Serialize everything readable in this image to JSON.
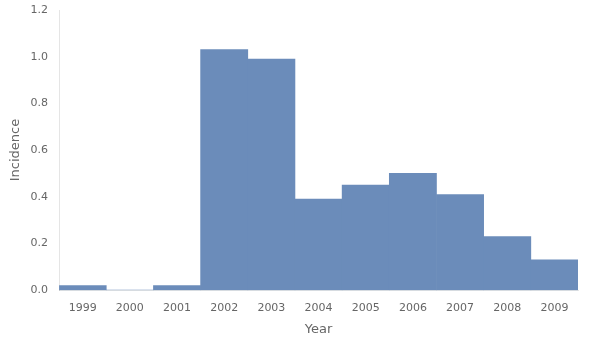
{
  "chart_data": {
    "type": "bar",
    "categories": [
      "1999",
      "2000",
      "2001",
      "2002",
      "2003",
      "2004",
      "2005",
      "2006",
      "2007",
      "2008",
      "2009"
    ],
    "values": [
      0.02,
      0.0,
      0.02,
      1.03,
      0.99,
      0.39,
      0.45,
      0.5,
      0.41,
      0.23,
      0.13
    ],
    "color": "#6b8cba",
    "xlabel": "Year",
    "ylabel": "Incidence",
    "ylim": [
      0,
      1.2
    ],
    "yticks": [
      {
        "value": 0.0,
        "label": "0.0"
      },
      0.2,
      0.4,
      0.6,
      0.8,
      {
        "value": 1.0,
        "label": "1.0"
      },
      1.2
    ],
    "grid": false
  }
}
